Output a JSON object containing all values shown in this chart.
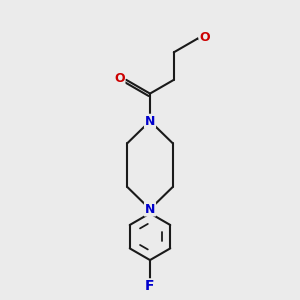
{
  "background_color": "#ebebeb",
  "bond_color": "#1a1a1a",
  "atom_colors": {
    "O": "#cc0000",
    "N": "#0000cc",
    "F": "#0000cc",
    "C": "#1a1a1a"
  },
  "line_width": 1.5,
  "font_size": 9,
  "figsize": [
    3.0,
    3.0
  ],
  "dpi": 100
}
